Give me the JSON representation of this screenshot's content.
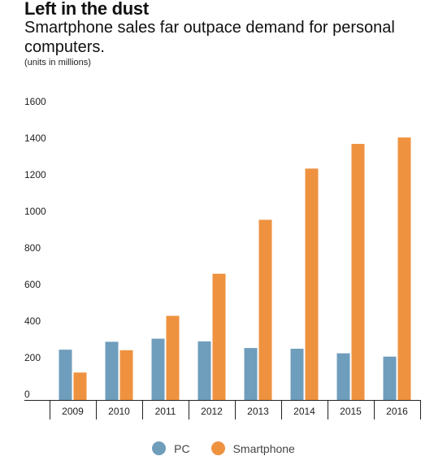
{
  "title": "Left in the dust",
  "subtitle": "Smartphone sales far outpace demand for personal computers.",
  "units_note": "(units in millions)",
  "colors": {
    "pc": "#6f9dbc",
    "smartphone": "#ef9240"
  },
  "chart_data": {
    "type": "bar",
    "categories": [
      "2009",
      "2010",
      "2011",
      "2012",
      "2013",
      "2014",
      "2015",
      "2016"
    ],
    "series": [
      {
        "name": "PC",
        "values": [
          275,
          318,
          335,
          320,
          284,
          280,
          255,
          237
        ]
      },
      {
        "name": "Smartphone",
        "values": [
          150,
          272,
          460,
          690,
          985,
          1265,
          1400,
          1435
        ]
      }
    ],
    "y_ticks": [
      0,
      200,
      400,
      600,
      800,
      1000,
      1200,
      1400,
      1600
    ],
    "ylim": [
      0,
      1600
    ],
    "grid": false,
    "legend_position": "bottom-center"
  }
}
